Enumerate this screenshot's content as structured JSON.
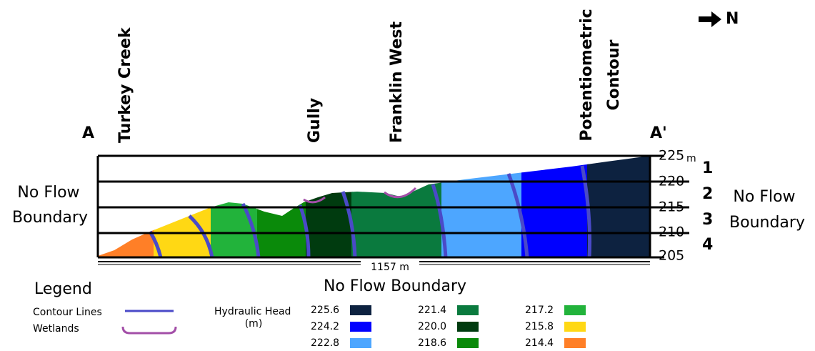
{
  "labels": {
    "north": "N",
    "a": "A",
    "a_prime": "A'"
  },
  "features": [
    "Turkey Creek",
    "Gully",
    "Franklin West",
    [
      "Potentiometric",
      "Contour"
    ]
  ],
  "boundaries": {
    "left": [
      "No Flow",
      "Boundary"
    ],
    "right": [
      "No Flow",
      "Boundary"
    ],
    "bottom": "No Flow Boundary"
  },
  "length": "1157 m",
  "elevations": [
    "225",
    "220",
    "215",
    "210",
    "205"
  ],
  "elevation_unit": "m",
  "layers": [
    "1",
    "2",
    "3",
    "4"
  ],
  "legend": {
    "title": "Legend",
    "contour": "Contour Lines",
    "wetlands": "Wetlands",
    "head_title": "Hydraulic Head",
    "head_unit": "(m)",
    "heads": [
      {
        "value": "225.6",
        "color": "#0d2240"
      },
      {
        "value": "224.2",
        "color": "#0000ff"
      },
      {
        "value": "222.8",
        "color": "#4da6ff"
      },
      {
        "value": "221.4",
        "color": "#0a7a3e"
      },
      {
        "value": "220.0",
        "color": "#003b0f"
      },
      {
        "value": "218.6",
        "color": "#0a8a0a"
      },
      {
        "value": "217.2",
        "color": "#22b33b"
      },
      {
        "value": "215.8",
        "color": "#ffd814"
      },
      {
        "value": "214.4",
        "color": "#ff7f27"
      }
    ]
  }
}
